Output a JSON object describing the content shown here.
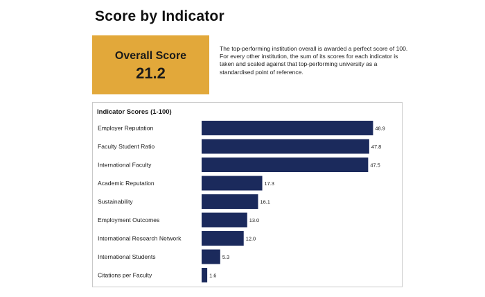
{
  "page": {
    "title": "Score by Indicator"
  },
  "overall": {
    "label": "Overall Score",
    "value": "21.2",
    "description": "The top-performing institution overall is awarded a perfect score of 100. For every other institution, the sum of its scores for each indicator is taken and scaled against that top-performing university as a standardised point of reference."
  },
  "colors": {
    "accent": "#e2a83a",
    "bar": "#1b2a5c"
  },
  "chart_data": {
    "type": "bar",
    "orientation": "horizontal",
    "title": "Indicator Scores (1-100)",
    "categories": [
      "Employer Reputation",
      "Faculty Student Ratio",
      "International Faculty",
      "Academic Reputation",
      "Sustainability",
      "Employment Outcomes",
      "International Research Network",
      "International Students",
      "Citations per Faculty"
    ],
    "values": [
      48.9,
      47.8,
      47.5,
      17.3,
      16.1,
      13.0,
      12.0,
      5.3,
      1.6
    ],
    "value_labels": [
      "48.9",
      "47.8",
      "47.5",
      "17.3",
      "16.1",
      "13.0",
      "12.0",
      "5.3",
      "1.6"
    ],
    "xlim": [
      0,
      50
    ],
    "grid": false,
    "legend": "none"
  }
}
